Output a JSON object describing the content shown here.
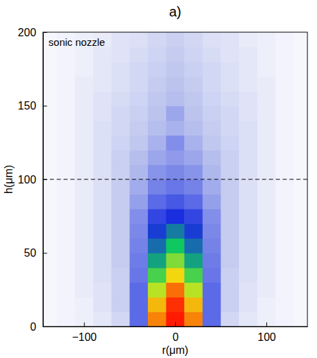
{
  "chart_data": {
    "type": "heatmap",
    "title": "a)",
    "annotation": "sonic nozzle",
    "x_label": "r(μm)",
    "y_label": "h(μm)",
    "x": [
      -140,
      -120,
      -100,
      -80,
      -60,
      -40,
      -20,
      0,
      20,
      40,
      60,
      80,
      100,
      120,
      140
    ],
    "y": [
      5,
      15,
      25,
      35,
      45,
      55,
      65,
      75,
      85,
      95,
      105,
      115,
      125,
      135,
      145,
      155,
      165,
      175,
      185,
      195
    ],
    "z": [
      [
        2,
        3,
        4,
        6,
        10,
        30,
        90,
        100,
        90,
        30,
        10,
        6,
        4,
        3,
        2
      ],
      [
        2,
        3,
        4,
        7,
        12,
        30,
        85,
        98,
        85,
        30,
        12,
        7,
        4,
        3,
        2
      ],
      [
        2,
        3,
        5,
        7,
        12,
        30,
        75,
        92,
        75,
        30,
        12,
        7,
        5,
        3,
        2
      ],
      [
        2,
        3,
        5,
        8,
        12,
        28,
        65,
        82,
        65,
        28,
        12,
        8,
        5,
        3,
        2
      ],
      [
        2,
        3,
        5,
        8,
        13,
        27,
        55,
        70,
        55,
        27,
        13,
        8,
        5,
        3,
        2
      ],
      [
        2,
        3,
        5,
        8,
        13,
        26,
        48,
        60,
        48,
        26,
        13,
        8,
        5,
        3,
        2
      ],
      [
        2,
        3,
        5,
        8,
        13,
        25,
        42,
        50,
        42,
        25,
        13,
        8,
        5,
        3,
        2
      ],
      [
        2,
        3,
        5,
        8,
        13,
        24,
        36,
        40,
        36,
        24,
        13,
        8,
        5,
        3,
        2
      ],
      [
        2,
        3,
        5,
        8,
        13,
        21,
        30,
        33,
        30,
        21,
        13,
        8,
        5,
        3,
        2
      ],
      [
        2,
        3,
        5,
        8,
        13,
        19,
        26,
        28,
        26,
        19,
        13,
        8,
        5,
        3,
        2
      ],
      [
        2,
        3,
        5,
        8,
        12,
        17,
        23,
        25,
        23,
        17,
        12,
        8,
        5,
        3,
        2
      ],
      [
        2,
        3,
        5,
        8,
        12,
        16,
        20,
        22,
        20,
        16,
        12,
        8,
        5,
        3,
        2
      ],
      [
        2,
        3,
        5,
        8,
        11,
        14,
        18,
        24,
        18,
        14,
        11,
        8,
        5,
        3,
        2
      ],
      [
        2,
        3,
        5,
        8,
        10,
        13,
        16,
        18,
        16,
        13,
        10,
        8,
        5,
        3,
        2
      ],
      [
        2,
        3,
        5,
        7,
        10,
        12,
        15,
        20,
        15,
        12,
        10,
        7,
        5,
        3,
        2
      ],
      [
        2,
        3,
        5,
        7,
        9,
        11,
        14,
        16,
        14,
        11,
        9,
        7,
        5,
        3,
        2
      ],
      [
        2,
        3,
        5,
        6,
        8,
        10,
        13,
        15,
        13,
        10,
        8,
        6,
        5,
        3,
        2
      ],
      [
        2,
        3,
        4,
        6,
        8,
        10,
        12,
        14,
        12,
        10,
        8,
        6,
        4,
        3,
        2
      ],
      [
        2,
        3,
        4,
        6,
        7,
        9,
        11,
        13,
        11,
        9,
        7,
        6,
        4,
        3,
        2
      ],
      [
        2,
        3,
        4,
        5,
        7,
        8,
        10,
        12,
        10,
        8,
        7,
        5,
        4,
        3,
        2
      ]
    ],
    "zlim": [
      0,
      100
    ],
    "xlim": [
      -145,
      145
    ],
    "ylim": [
      0,
      200
    ],
    "xticks": [
      {
        "value": -100,
        "label": "−100"
      },
      0,
      100
    ],
    "yticks": [
      0,
      50,
      100,
      150,
      200
    ],
    "reference_line": {
      "y": 100,
      "line_style": "dashed"
    }
  }
}
